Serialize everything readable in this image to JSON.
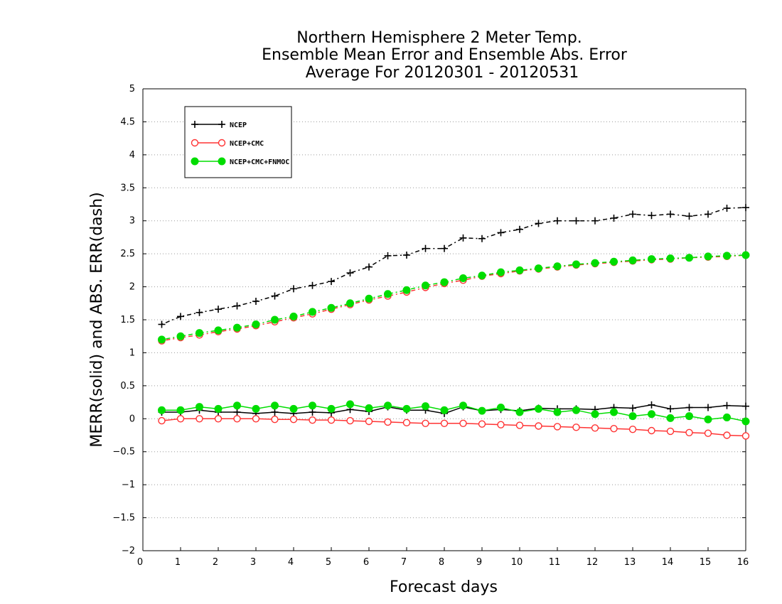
{
  "chart_data": {
    "type": "line",
    "title": [
      "Northern Hemisphere 2 Meter Temp.",
      "Ensemble Mean Error and Ensemble Abs. Error",
      "Average For 20120301 - 20120531"
    ],
    "xlabel": "Forecast days",
    "ylabel": "MERR(solid) and ABS. ERR(dash)",
    "xlim": [
      0,
      16
    ],
    "ylim": [
      -2,
      5
    ],
    "xticks": [
      0,
      1,
      2,
      3,
      4,
      5,
      6,
      7,
      8,
      9,
      10,
      11,
      12,
      13,
      14,
      15,
      16
    ],
    "yticks": [
      -2,
      -1.5,
      -1,
      -0.5,
      0,
      0.5,
      1,
      1.5,
      2,
      2.5,
      3,
      3.5,
      4,
      4.5,
      5
    ],
    "grid": "horizontal-dotted",
    "legend_position": "top-left",
    "x": [
      0.5,
      1,
      1.5,
      2,
      2.5,
      3,
      3.5,
      4,
      4.5,
      5,
      5.5,
      6,
      6.5,
      7,
      7.5,
      8,
      8.5,
      9,
      9.5,
      10,
      10.5,
      11,
      11.5,
      12,
      12.5,
      13,
      13.5,
      14,
      14.5,
      15,
      15.5,
      16
    ],
    "series": [
      {
        "name": "NCEP",
        "color": "#000000",
        "marker": "plus",
        "style": "solid",
        "values": [
          0.1,
          0.1,
          0.13,
          0.1,
          0.1,
          0.08,
          0.1,
          0.08,
          0.1,
          0.09,
          0.14,
          0.11,
          0.18,
          0.13,
          0.13,
          0.08,
          0.18,
          0.12,
          0.14,
          0.12,
          0.16,
          0.15,
          0.15,
          0.14,
          0.17,
          0.16,
          0.21,
          0.15,
          0.17,
          0.17,
          0.2,
          0.19
        ]
      },
      {
        "name": "NCEP+CMC",
        "color": "#ff3333",
        "marker": "circle-open",
        "style": "solid",
        "values": [
          -0.03,
          0.0,
          0.0,
          0.0,
          0.0,
          0.0,
          -0.01,
          -0.01,
          -0.02,
          -0.02,
          -0.03,
          -0.04,
          -0.05,
          -0.06,
          -0.07,
          -0.07,
          -0.07,
          -0.08,
          -0.09,
          -0.1,
          -0.11,
          -0.12,
          -0.13,
          -0.14,
          -0.15,
          -0.16,
          -0.18,
          -0.19,
          -0.21,
          -0.22,
          -0.25,
          -0.26
        ]
      },
      {
        "name": "NCEP+CMC+FNMOC",
        "color": "#00dd00",
        "marker": "circle-filled",
        "style": "solid",
        "values": [
          0.13,
          0.13,
          0.18,
          0.15,
          0.2,
          0.15,
          0.2,
          0.15,
          0.2,
          0.15,
          0.22,
          0.16,
          0.2,
          0.15,
          0.19,
          0.13,
          0.2,
          0.12,
          0.17,
          0.1,
          0.15,
          0.1,
          0.13,
          0.07,
          0.1,
          0.04,
          0.07,
          0.01,
          0.04,
          -0.01,
          0.02,
          -0.04
        ]
      },
      {
        "name": "NCEP",
        "color": "#000000",
        "marker": "plus",
        "style": "dashed",
        "values": [
          1.43,
          1.55,
          1.61,
          1.66,
          1.71,
          1.78,
          1.86,
          1.97,
          2.02,
          2.08,
          2.21,
          2.3,
          2.47,
          2.48,
          2.58,
          2.58,
          2.74,
          2.73,
          2.82,
          2.87,
          2.96,
          3.0,
          3.0,
          3.0,
          3.04,
          3.1,
          3.08,
          3.1,
          3.07,
          3.1,
          3.19,
          3.2
        ]
      },
      {
        "name": "NCEP+CMC",
        "color": "#ff3333",
        "marker": "circle-open",
        "style": "dashed",
        "values": [
          1.18,
          1.23,
          1.27,
          1.32,
          1.36,
          1.41,
          1.47,
          1.53,
          1.59,
          1.66,
          1.73,
          1.8,
          1.86,
          1.92,
          1.99,
          2.05,
          2.1,
          2.16,
          2.2,
          2.24,
          2.27,
          2.3,
          2.33,
          2.35,
          2.37,
          2.39,
          2.41,
          2.42,
          2.44,
          2.45,
          2.46,
          2.48
        ]
      },
      {
        "name": "NCEP+CMC+FNMOC",
        "color": "#00dd00",
        "marker": "circle-filled",
        "style": "dashed",
        "values": [
          1.2,
          1.25,
          1.3,
          1.34,
          1.38,
          1.43,
          1.5,
          1.55,
          1.62,
          1.68,
          1.75,
          1.82,
          1.89,
          1.95,
          2.02,
          2.07,
          2.13,
          2.17,
          2.22,
          2.25,
          2.28,
          2.31,
          2.34,
          2.36,
          2.38,
          2.4,
          2.42,
          2.43,
          2.44,
          2.46,
          2.47,
          2.48
        ]
      }
    ],
    "legend": [
      {
        "label": "NCEP",
        "color": "#000000",
        "marker": "plus"
      },
      {
        "label": "NCEP+CMC",
        "color": "#ff3333",
        "marker": "circle-open"
      },
      {
        "label": "NCEP+CMC+FNMOC",
        "color": "#00dd00",
        "marker": "circle-filled"
      }
    ]
  }
}
